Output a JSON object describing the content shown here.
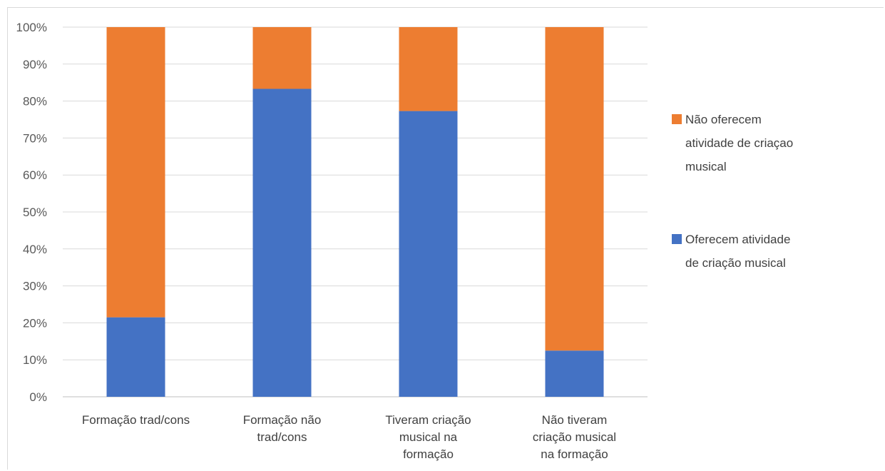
{
  "colors": {
    "bottom": "#4472c4",
    "top": "#ed7d31",
    "grid": "#d9d9d9",
    "axis": "#bfbfbf"
  },
  "chart_data": {
    "type": "bar",
    "stacked": true,
    "percent": true,
    "categories": [
      [
        "Formação trad/cons"
      ],
      [
        "Formação não",
        "trad/cons"
      ],
      [
        "Tiveram criação",
        "musical na",
        "formação"
      ],
      [
        "Não tiveram",
        "criação musical",
        "na formação"
      ]
    ],
    "series": [
      {
        "name": [
          "Oferecem atividade",
          "de criação musical"
        ],
        "values": [
          21.5,
          83.3,
          77.3,
          12.5
        ],
        "color": "#4472c4"
      },
      {
        "name": [
          "Não oferecem",
          "atividade de criaçao",
          "musical"
        ],
        "values": [
          78.5,
          16.7,
          22.7,
          87.5
        ],
        "color": "#ed7d31"
      }
    ],
    "ylim": [
      0,
      100
    ],
    "yticks": [
      "0%",
      "10%",
      "20%",
      "30%",
      "40%",
      "50%",
      "60%",
      "70%",
      "80%",
      "90%",
      "100%"
    ],
    "grid": true,
    "legend": "right"
  }
}
